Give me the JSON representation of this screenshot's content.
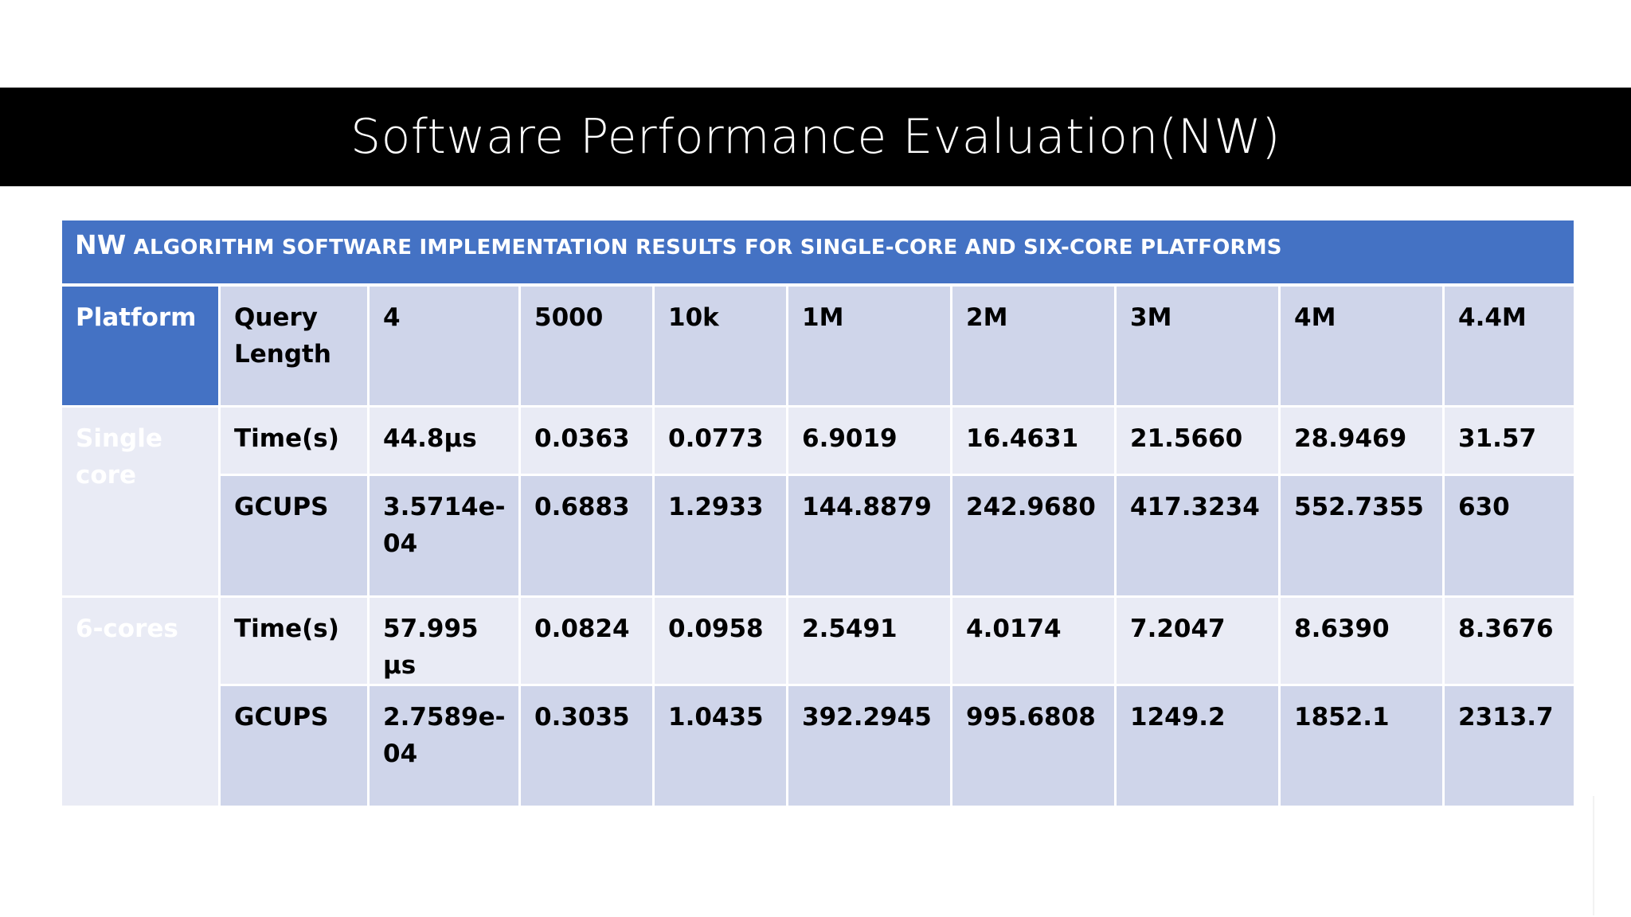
{
  "slide": {
    "title": "Software Performance Evaluation(NW)"
  },
  "table": {
    "caption_lead": "NW",
    "caption_rest": " ALGORITHM SOFTWARE IMPLEMENTATION RESULTS FOR SINGLE-CORE AND SIX-CORE PLATFORMS",
    "header": {
      "platform": "Platform",
      "metric": "Query Length",
      "values": [
        "4",
        "5000",
        "10k",
        "1M",
        "2M",
        "3M",
        "4M",
        "4.4M"
      ]
    },
    "groups": [
      {
        "platform": "Single core",
        "rows": [
          {
            "metric": "Time(s)",
            "values": [
              "44.8µs",
              "0.0363",
              "0.0773",
              "6.9019",
              "16.4631",
              "21.5660",
              "28.9469",
              "31.57"
            ]
          },
          {
            "metric": "GCUPS",
            "values": [
              "3.5714e-04",
              "0.6883",
              "1.2933",
              "144.8879",
              "242.9680",
              "417.3234",
              "552.7355",
              "630"
            ]
          }
        ]
      },
      {
        "platform": "6-cores",
        "rows": [
          {
            "metric": "Time(s)",
            "values": [
              "57.995 µs",
              "0.0824",
              "0.0958",
              "2.5491",
              "4.0174",
              "7.2047",
              "8.6390",
              "8.3676"
            ]
          },
          {
            "metric": "GCUPS",
            "values": [
              "2.7589e-04",
              "0.3035",
              "1.0435",
              "392.2945",
              "995.6808",
              "1249.2",
              "1852.1",
              "2313.7"
            ]
          }
        ]
      }
    ]
  },
  "colors": {
    "title_bar": "#000000",
    "header_blue": "#4472c4",
    "band_dark": "#cfd5ea",
    "band_light": "#e9ebf5"
  }
}
